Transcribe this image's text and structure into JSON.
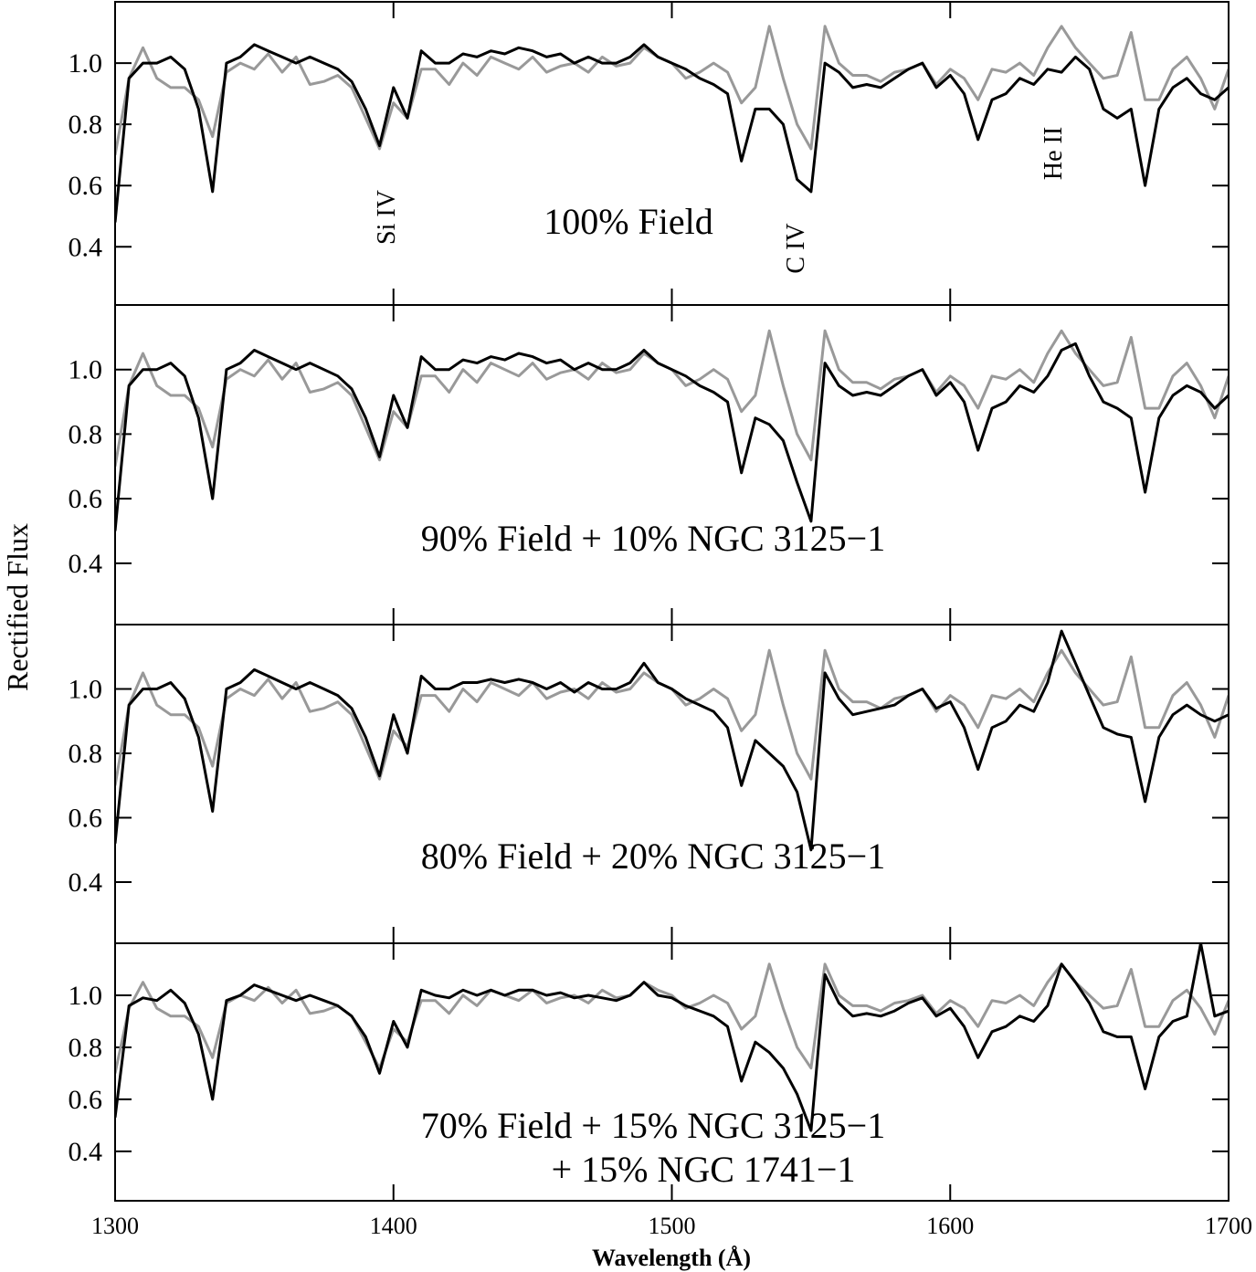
{
  "figure": {
    "xlabel": "Wavelength (Å)",
    "ylabel": "Rectified Flux"
  },
  "chart_data": [
    {
      "type": "line",
      "xlim": [
        1300,
        1700
      ],
      "ylim": [
        0.21,
        1.2
      ],
      "xticks": [
        1300,
        1400,
        1500,
        1600,
        1700
      ],
      "xtick_labels": false,
      "yticks": [
        0.4,
        0.6,
        0.8,
        {
          "value": 1,
          "label": "1.0"
        }
      ],
      "annotations": [
        "Si IV",
        "C IV",
        "He II",
        "100% Field"
      ],
      "x": [
        1300,
        1305,
        1310,
        1315,
        1320,
        1325,
        1330,
        1335,
        1340,
        1345,
        1350,
        1355,
        1360,
        1365,
        1370,
        1375,
        1380,
        1385,
        1390,
        1395,
        1400,
        1405,
        1410,
        1415,
        1420,
        1425,
        1430,
        1435,
        1440,
        1445,
        1450,
        1455,
        1460,
        1465,
        1470,
        1475,
        1480,
        1485,
        1490,
        1495,
        1500,
        1505,
        1510,
        1515,
        1520,
        1525,
        1530,
        1535,
        1540,
        1545,
        1550,
        1555,
        1560,
        1565,
        1570,
        1575,
        1580,
        1585,
        1590,
        1595,
        1600,
        1605,
        1610,
        1615,
        1620,
        1625,
        1630,
        1635,
        1640,
        1645,
        1650,
        1655,
        1660,
        1665,
        1670,
        1675,
        1680,
        1685,
        1690,
        1695,
        1700
      ],
      "series": [
        {
          "color": "#999999",
          "values": [
            0.7,
            0.95,
            1.05,
            0.95,
            0.92,
            0.92,
            0.88,
            0.76,
            0.97,
            1.0,
            0.98,
            1.03,
            0.97,
            1.02,
            0.93,
            0.94,
            0.96,
            0.92,
            0.82,
            0.72,
            0.87,
            0.82,
            0.98,
            0.98,
            0.93,
            1.0,
            0.96,
            1.02,
            1.0,
            0.98,
            1.02,
            0.97,
            0.99,
            1.0,
            0.97,
            1.02,
            0.99,
            1.0,
            1.05,
            1.02,
            1.0,
            0.95,
            0.97,
            1.0,
            0.97,
            0.87,
            0.92,
            1.12,
            0.95,
            0.8,
            0.72,
            1.12,
            1.0,
            0.96,
            0.96,
            0.94,
            0.97,
            0.98,
            1.0,
            0.93,
            0.98,
            0.95,
            0.88,
            0.98,
            0.97,
            1.0,
            0.96,
            1.05,
            1.12,
            1.05,
            1.0,
            0.95,
            0.96,
            1.1,
            0.88,
            0.88,
            0.98,
            1.02,
            0.95,
            0.85,
            0.98
          ]
        },
        {
          "color": "#000000",
          "values": [
            0.48,
            0.95,
            1.0,
            1.0,
            1.02,
            0.98,
            0.85,
            0.58,
            1.0,
            1.02,
            1.06,
            1.04,
            1.02,
            1.0,
            1.02,
            1.0,
            0.98,
            0.94,
            0.85,
            0.73,
            0.92,
            0.82,
            1.04,
            1.0,
            1.0,
            1.03,
            1.02,
            1.04,
            1.03,
            1.05,
            1.04,
            1.02,
            1.03,
            1.0,
            1.02,
            1.0,
            1.0,
            1.02,
            1.06,
            1.02,
            1.0,
            0.98,
            0.95,
            0.93,
            0.9,
            0.68,
            0.85,
            0.85,
            0.8,
            0.62,
            0.58,
            1.0,
            0.97,
            0.92,
            0.93,
            0.92,
            0.95,
            0.98,
            1.0,
            0.92,
            0.96,
            0.9,
            0.75,
            0.88,
            0.9,
            0.95,
            0.93,
            0.98,
            0.97,
            1.02,
            0.98,
            0.85,
            0.82,
            0.85,
            0.6,
            0.85,
            0.92,
            0.95,
            0.9,
            0.88,
            0.92
          ]
        }
      ]
    },
    {
      "type": "line",
      "xlim": [
        1300,
        1700
      ],
      "ylim": [
        0.21,
        1.2
      ],
      "xticks": [
        1300,
        1400,
        1500,
        1600,
        1700
      ],
      "xtick_labels": false,
      "yticks": [
        0.4,
        0.6,
        0.8,
        {
          "value": 1,
          "label": "1.0"
        }
      ],
      "annotations": [
        "90% Field + 10% NGC 3125−1"
      ],
      "x": [
        1300,
        1305,
        1310,
        1315,
        1320,
        1325,
        1330,
        1335,
        1340,
        1345,
        1350,
        1355,
        1360,
        1365,
        1370,
        1375,
        1380,
        1385,
        1390,
        1395,
        1400,
        1405,
        1410,
        1415,
        1420,
        1425,
        1430,
        1435,
        1440,
        1445,
        1450,
        1455,
        1460,
        1465,
        1470,
        1475,
        1480,
        1485,
        1490,
        1495,
        1500,
        1505,
        1510,
        1515,
        1520,
        1525,
        1530,
        1535,
        1540,
        1545,
        1550,
        1555,
        1560,
        1565,
        1570,
        1575,
        1580,
        1585,
        1590,
        1595,
        1600,
        1605,
        1610,
        1615,
        1620,
        1625,
        1630,
        1635,
        1640,
        1645,
        1650,
        1655,
        1660,
        1665,
        1670,
        1675,
        1680,
        1685,
        1690,
        1695,
        1700
      ],
      "series": [
        {
          "color": "#999999",
          "values": [
            0.7,
            0.95,
            1.05,
            0.95,
            0.92,
            0.92,
            0.88,
            0.76,
            0.97,
            1.0,
            0.98,
            1.03,
            0.97,
            1.02,
            0.93,
            0.94,
            0.96,
            0.92,
            0.82,
            0.72,
            0.87,
            0.82,
            0.98,
            0.98,
            0.93,
            1.0,
            0.96,
            1.02,
            1.0,
            0.98,
            1.02,
            0.97,
            0.99,
            1.0,
            0.97,
            1.02,
            0.99,
            1.0,
            1.05,
            1.02,
            1.0,
            0.95,
            0.97,
            1.0,
            0.97,
            0.87,
            0.92,
            1.12,
            0.95,
            0.8,
            0.72,
            1.12,
            1.0,
            0.96,
            0.96,
            0.94,
            0.97,
            0.98,
            1.0,
            0.93,
            0.98,
            0.95,
            0.88,
            0.98,
            0.97,
            1.0,
            0.96,
            1.05,
            1.12,
            1.05,
            1.0,
            0.95,
            0.96,
            1.1,
            0.88,
            0.88,
            0.98,
            1.02,
            0.95,
            0.85,
            0.98
          ]
        },
        {
          "color": "#000000",
          "values": [
            0.5,
            0.95,
            1.0,
            1.0,
            1.02,
            0.98,
            0.85,
            0.6,
            1.0,
            1.02,
            1.06,
            1.04,
            1.02,
            1.0,
            1.02,
            1.0,
            0.98,
            0.94,
            0.85,
            0.73,
            0.92,
            0.82,
            1.04,
            1.0,
            1.0,
            1.03,
            1.02,
            1.04,
            1.03,
            1.05,
            1.04,
            1.02,
            1.03,
            1.0,
            1.02,
            1.0,
            1.0,
            1.02,
            1.06,
            1.02,
            1.0,
            0.98,
            0.95,
            0.93,
            0.9,
            0.68,
            0.85,
            0.83,
            0.78,
            0.65,
            0.53,
            1.02,
            0.95,
            0.92,
            0.93,
            0.92,
            0.95,
            0.98,
            1.0,
            0.92,
            0.96,
            0.9,
            0.75,
            0.88,
            0.9,
            0.95,
            0.93,
            0.98,
            1.06,
            1.08,
            0.98,
            0.9,
            0.88,
            0.85,
            0.62,
            0.85,
            0.92,
            0.95,
            0.93,
            0.88,
            0.92
          ]
        }
      ]
    },
    {
      "type": "line",
      "xlim": [
        1300,
        1700
      ],
      "ylim": [
        0.21,
        1.2
      ],
      "xticks": [
        1300,
        1400,
        1500,
        1600,
        1700
      ],
      "xtick_labels": false,
      "yticks": [
        0.4,
        0.6,
        0.8,
        {
          "value": 1,
          "label": "1.0"
        }
      ],
      "annotations": [
        "80% Field + 20% NGC 3125−1"
      ],
      "x": [
        1300,
        1305,
        1310,
        1315,
        1320,
        1325,
        1330,
        1335,
        1340,
        1345,
        1350,
        1355,
        1360,
        1365,
        1370,
        1375,
        1380,
        1385,
        1390,
        1395,
        1400,
        1405,
        1410,
        1415,
        1420,
        1425,
        1430,
        1435,
        1440,
        1445,
        1450,
        1455,
        1460,
        1465,
        1470,
        1475,
        1480,
        1485,
        1490,
        1495,
        1500,
        1505,
        1510,
        1515,
        1520,
        1525,
        1530,
        1535,
        1540,
        1545,
        1550,
        1555,
        1560,
        1565,
        1570,
        1575,
        1580,
        1585,
        1590,
        1595,
        1600,
        1605,
        1610,
        1615,
        1620,
        1625,
        1630,
        1635,
        1640,
        1645,
        1650,
        1655,
        1660,
        1665,
        1670,
        1675,
        1680,
        1685,
        1690,
        1695,
        1700
      ],
      "series": [
        {
          "color": "#999999",
          "values": [
            0.7,
            0.95,
            1.05,
            0.95,
            0.92,
            0.92,
            0.88,
            0.76,
            0.97,
            1.0,
            0.98,
            1.03,
            0.97,
            1.02,
            0.93,
            0.94,
            0.96,
            0.92,
            0.82,
            0.72,
            0.87,
            0.82,
            0.98,
            0.98,
            0.93,
            1.0,
            0.96,
            1.02,
            1.0,
            0.98,
            1.02,
            0.97,
            0.99,
            1.0,
            0.97,
            1.02,
            0.99,
            1.0,
            1.05,
            1.02,
            1.0,
            0.95,
            0.97,
            1.0,
            0.97,
            0.87,
            0.92,
            1.12,
            0.95,
            0.8,
            0.72,
            1.12,
            1.0,
            0.96,
            0.96,
            0.94,
            0.97,
            0.98,
            1.0,
            0.93,
            0.98,
            0.95,
            0.88,
            0.98,
            0.97,
            1.0,
            0.96,
            1.05,
            1.12,
            1.05,
            1.0,
            0.95,
            0.96,
            1.1,
            0.88,
            0.88,
            0.98,
            1.02,
            0.95,
            0.85,
            0.98
          ]
        },
        {
          "color": "#000000",
          "values": [
            0.52,
            0.95,
            1.0,
            1.0,
            1.02,
            0.97,
            0.85,
            0.62,
            1.0,
            1.02,
            1.06,
            1.04,
            1.02,
            1.0,
            1.02,
            1.0,
            0.98,
            0.94,
            0.85,
            0.73,
            0.92,
            0.8,
            1.04,
            1.0,
            1.0,
            1.02,
            1.02,
            1.03,
            1.02,
            1.03,
            1.02,
            1.0,
            1.02,
            0.99,
            1.02,
            1.0,
            1.0,
            1.02,
            1.08,
            1.02,
            1.0,
            0.97,
            0.95,
            0.93,
            0.88,
            0.7,
            0.84,
            0.8,
            0.76,
            0.68,
            0.5,
            1.05,
            0.97,
            0.92,
            0.93,
            0.94,
            0.95,
            0.98,
            1.0,
            0.94,
            0.96,
            0.88,
            0.75,
            0.88,
            0.9,
            0.95,
            0.93,
            1.02,
            1.18,
            1.08,
            0.98,
            0.88,
            0.86,
            0.85,
            0.65,
            0.85,
            0.92,
            0.95,
            0.92,
            0.9,
            0.92
          ]
        }
      ]
    },
    {
      "type": "line",
      "xlim": [
        1300,
        1700
      ],
      "ylim": [
        0.21,
        1.2
      ],
      "xticks": [
        1300,
        1400,
        1500,
        1600,
        1700
      ],
      "xtick_labels": true,
      "yticks": [
        0.4,
        0.6,
        0.8,
        {
          "value": 1,
          "label": "1.0"
        }
      ],
      "annotations": [
        "70% Field + 15% NGC 3125−1",
        "+ 15% NGC 1741−1"
      ],
      "x": [
        1300,
        1305,
        1310,
        1315,
        1320,
        1325,
        1330,
        1335,
        1340,
        1345,
        1350,
        1355,
        1360,
        1365,
        1370,
        1375,
        1380,
        1385,
        1390,
        1395,
        1400,
        1405,
        1410,
        1415,
        1420,
        1425,
        1430,
        1435,
        1440,
        1445,
        1450,
        1455,
        1460,
        1465,
        1470,
        1475,
        1480,
        1485,
        1490,
        1495,
        1500,
        1505,
        1510,
        1515,
        1520,
        1525,
        1530,
        1535,
        1540,
        1545,
        1550,
        1555,
        1560,
        1565,
        1570,
        1575,
        1580,
        1585,
        1590,
        1595,
        1600,
        1605,
        1610,
        1615,
        1620,
        1625,
        1630,
        1635,
        1640,
        1645,
        1650,
        1655,
        1660,
        1665,
        1670,
        1675,
        1680,
        1685,
        1690,
        1695,
        1700
      ],
      "series": [
        {
          "color": "#999999",
          "values": [
            0.7,
            0.95,
            1.05,
            0.95,
            0.92,
            0.92,
            0.88,
            0.76,
            0.97,
            1.0,
            0.98,
            1.03,
            0.97,
            1.02,
            0.93,
            0.94,
            0.96,
            0.92,
            0.82,
            0.72,
            0.87,
            0.82,
            0.98,
            0.98,
            0.93,
            1.0,
            0.96,
            1.02,
            1.0,
            0.98,
            1.02,
            0.97,
            0.99,
            1.0,
            0.97,
            1.02,
            0.99,
            1.0,
            1.05,
            1.02,
            1.0,
            0.95,
            0.97,
            1.0,
            0.97,
            0.87,
            0.92,
            1.12,
            0.95,
            0.8,
            0.72,
            1.12,
            1.0,
            0.96,
            0.96,
            0.94,
            0.97,
            0.98,
            1.0,
            0.93,
            0.98,
            0.95,
            0.88,
            0.98,
            0.97,
            1.0,
            0.96,
            1.05,
            1.12,
            1.05,
            1.0,
            0.95,
            0.96,
            1.1,
            0.88,
            0.88,
            0.98,
            1.02,
            0.95,
            0.85,
            0.98
          ]
        },
        {
          "color": "#000000",
          "values": [
            0.53,
            0.96,
            0.99,
            0.98,
            1.02,
            0.97,
            0.85,
            0.6,
            0.98,
            1.0,
            1.04,
            1.02,
            1.0,
            0.98,
            1.0,
            0.98,
            0.96,
            0.92,
            0.84,
            0.7,
            0.9,
            0.8,
            1.02,
            1.0,
            0.99,
            1.02,
            1.0,
            1.02,
            1.0,
            1.02,
            1.02,
            1.0,
            1.01,
            0.99,
            1.0,
            0.99,
            0.98,
            1.0,
            1.05,
            1.0,
            0.99,
            0.96,
            0.94,
            0.92,
            0.88,
            0.67,
            0.82,
            0.78,
            0.72,
            0.62,
            0.48,
            1.08,
            0.97,
            0.92,
            0.93,
            0.92,
            0.94,
            0.97,
            0.99,
            0.92,
            0.95,
            0.88,
            0.76,
            0.86,
            0.88,
            0.92,
            0.9,
            0.96,
            1.12,
            1.05,
            0.97,
            0.86,
            0.84,
            0.84,
            0.64,
            0.84,
            0.9,
            0.92,
            1.2,
            0.92,
            0.94
          ]
        }
      ]
    }
  ]
}
